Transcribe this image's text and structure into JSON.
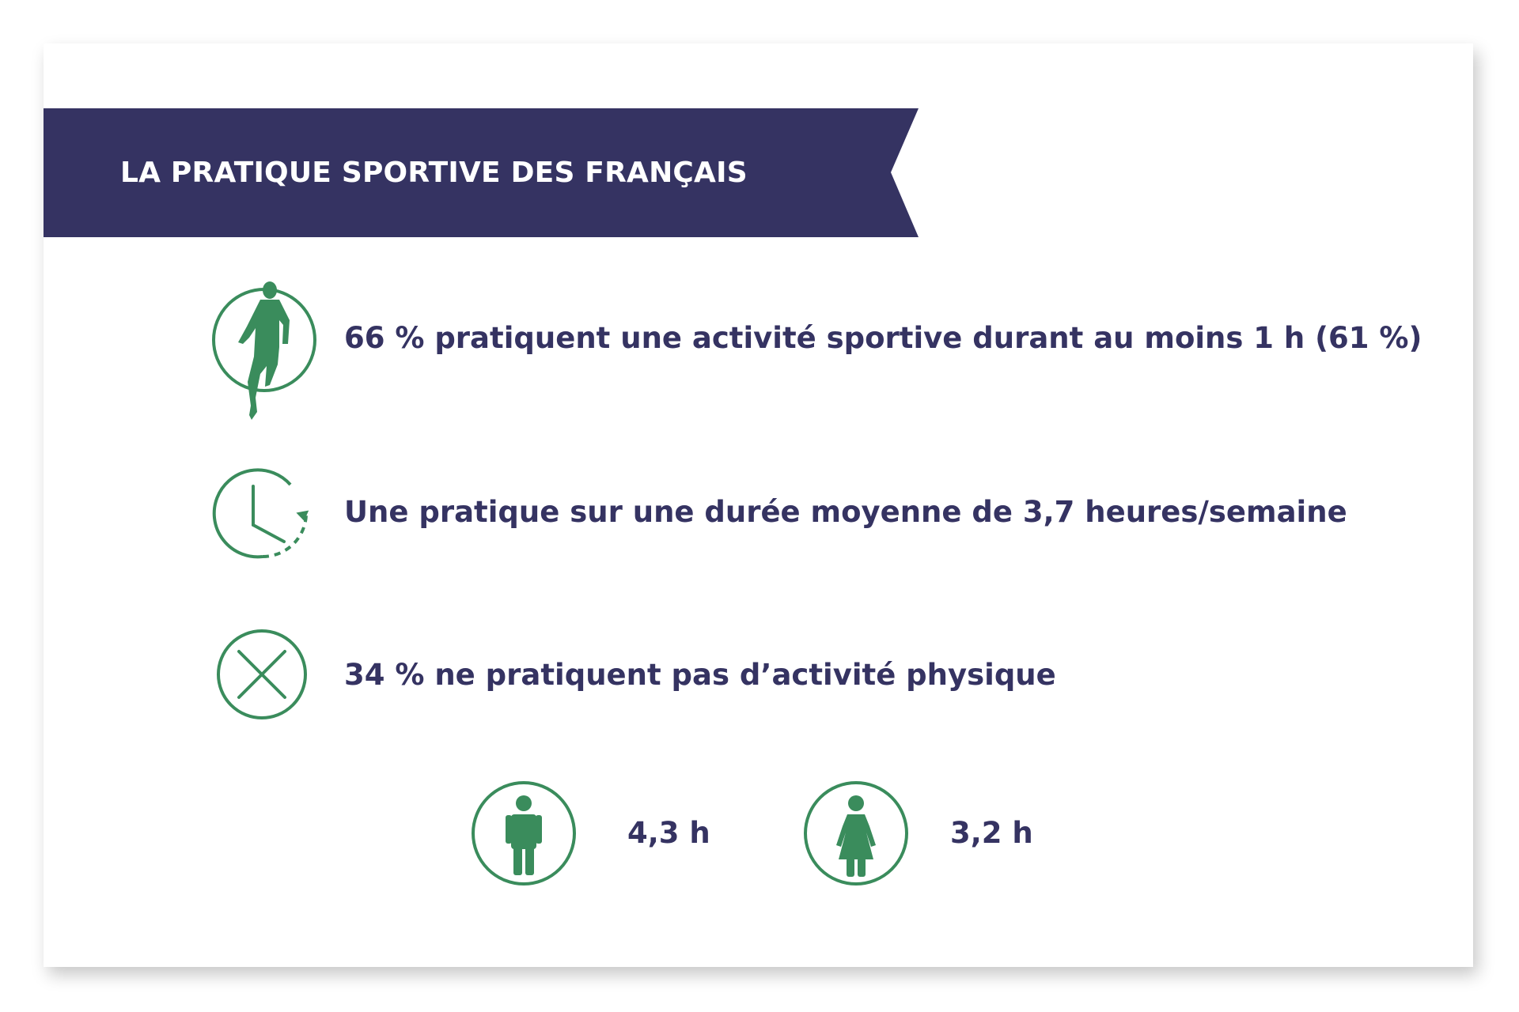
{
  "banner": {
    "title": "LA PRATIQUE SPORTIVE DES FRANÇAIS",
    "color": "#353362"
  },
  "accent_color": "#3a8c5c",
  "stats": [
    {
      "icon": "runner-icon",
      "text": "66 % pratiquent une activité sportive durant au moins 1 h (61 %)"
    },
    {
      "icon": "clock-icon",
      "text": "Une pratique sur une durée moyenne de 3,7 heures/semaine"
    },
    {
      "icon": "cross-icon",
      "text": "34 % ne pratiquent pas d’activité physique"
    }
  ],
  "gender": {
    "male": {
      "icon": "man-icon",
      "value": "4,3 h"
    },
    "female": {
      "icon": "woman-icon",
      "value": "3,2 h"
    }
  }
}
